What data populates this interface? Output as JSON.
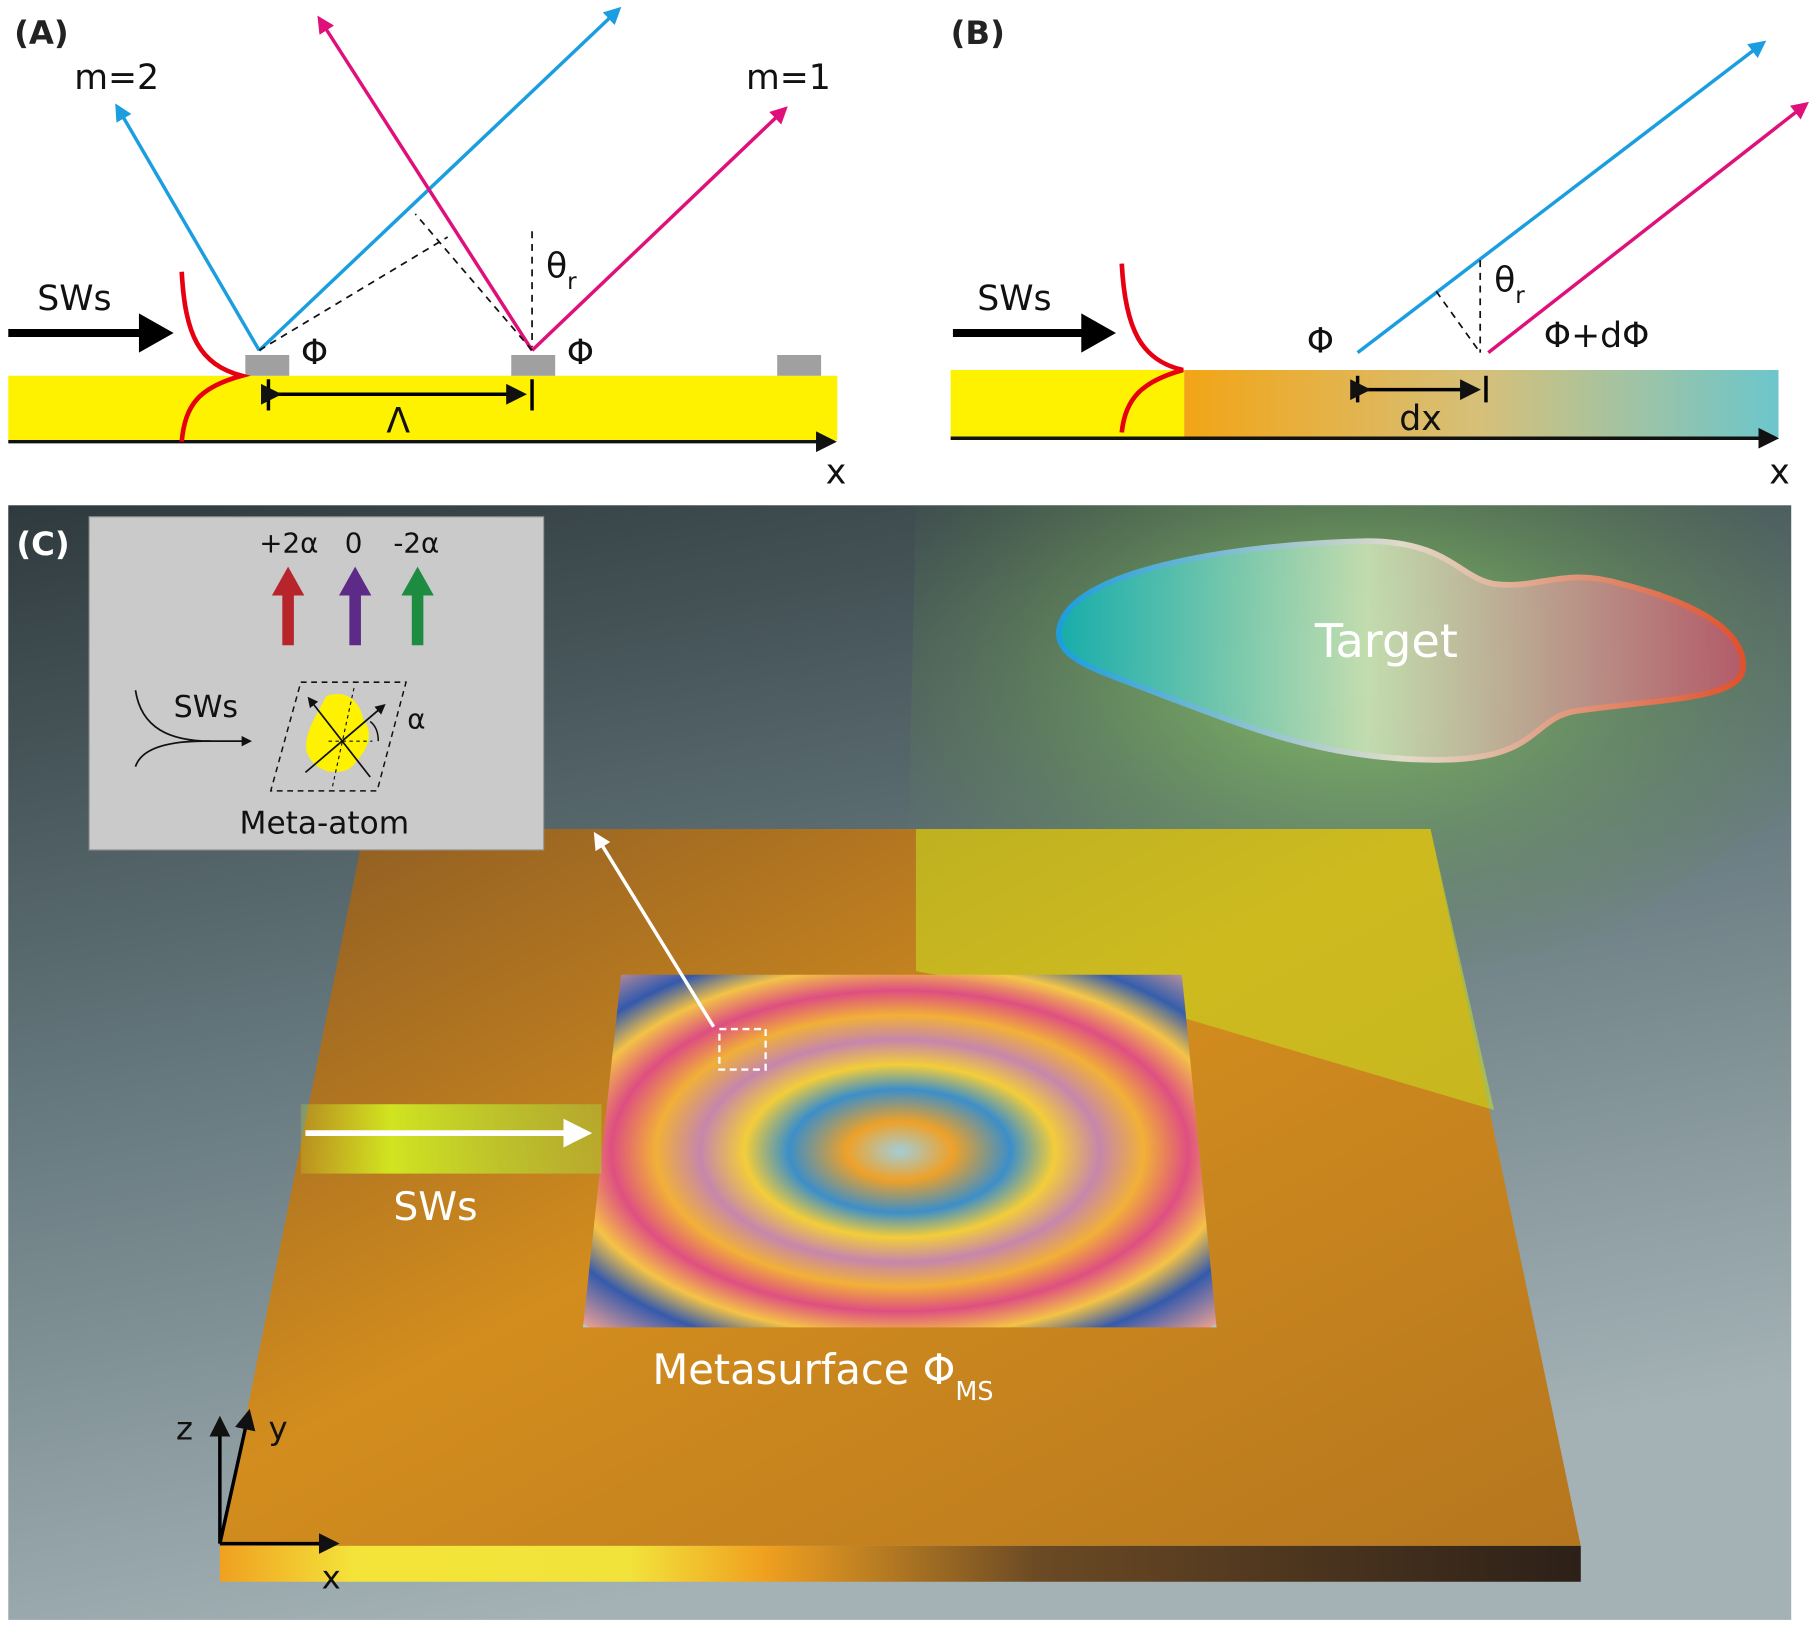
{
  "panel_a": {
    "label": "(A)",
    "order_m2": "m=2",
    "order_m1": "m=1",
    "sws": "SWs",
    "phase_left": "Φ",
    "phase_right": "Φ",
    "theta": "θ",
    "theta_sub": "r",
    "period": "Λ",
    "axis_x": "x",
    "colors": {
      "substrate": "#fff200",
      "blue_ray": "#1a9ee0",
      "pink_ray": "#e0107a",
      "mode_profile": "#e60012",
      "atom": "#a0a0a0"
    }
  },
  "panel_b": {
    "label": "(B)",
    "sws": "SWs",
    "phase": "Φ",
    "phase_shifted": "Φ+dΦ",
    "theta": "θ",
    "theta_sub": "r",
    "dx": "dx",
    "axis_x": "x"
  },
  "panel_c": {
    "label": "(C)",
    "inset": {
      "arrow_labels": [
        "+2α",
        "0",
        "-2α"
      ],
      "arrow_colors": [
        "#b7242b",
        "#5e2a87",
        "#1e8c40"
      ],
      "sws": "SWs",
      "alpha": "α",
      "caption": "Meta-atom"
    },
    "target": "Target",
    "sws": "SWs",
    "metasurface": "Metasurface Φ",
    "metasurface_sub": "MS",
    "axes": {
      "z": "z",
      "y": "y",
      "x": "x"
    }
  }
}
